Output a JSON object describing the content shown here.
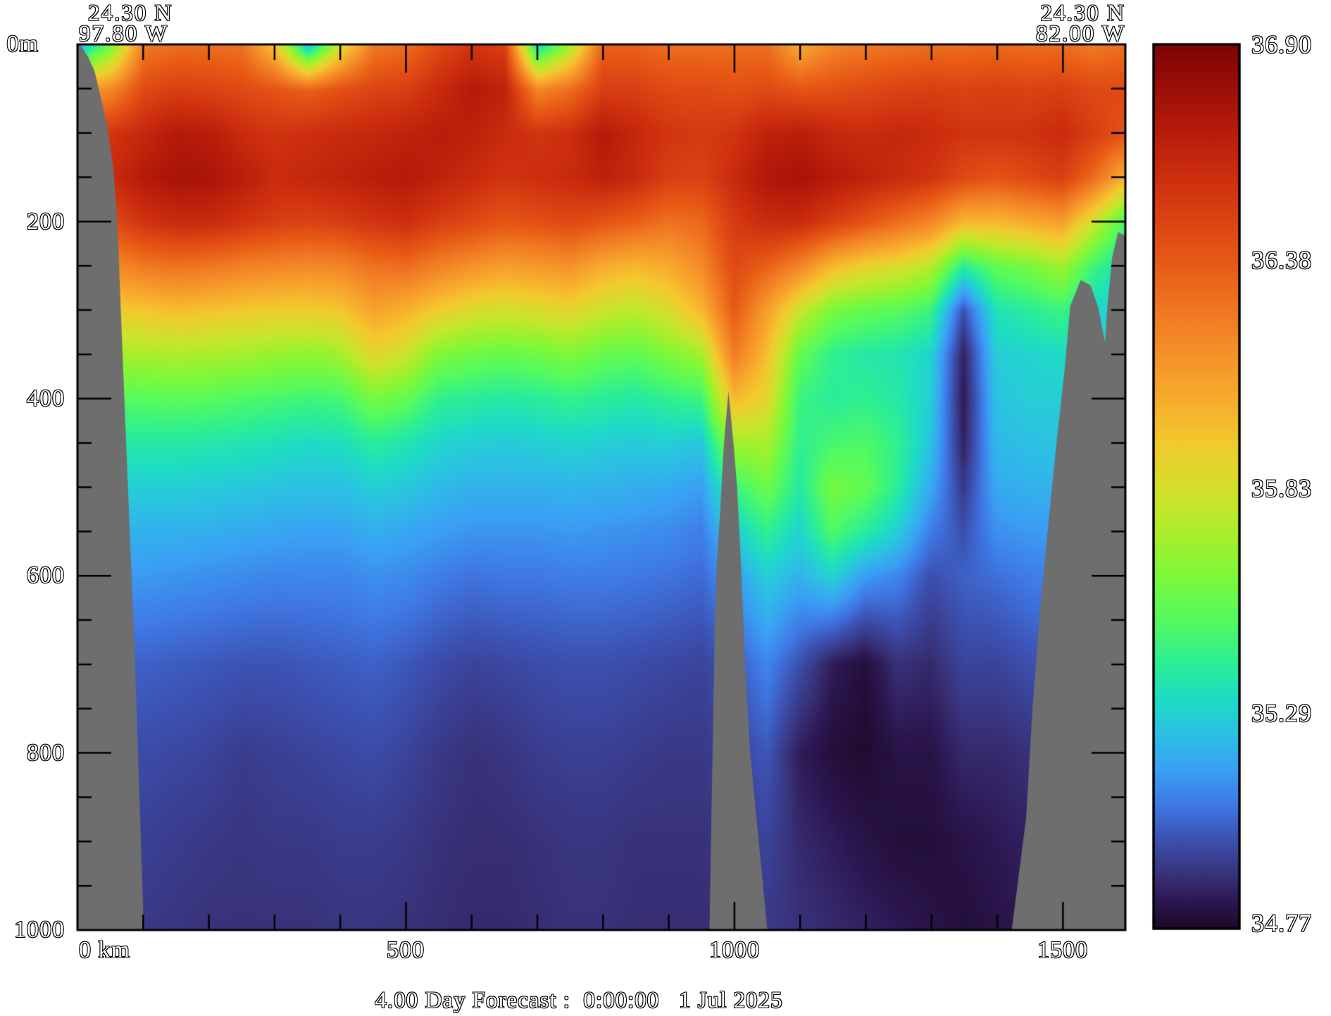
{
  "header": {
    "left": {
      "lat": "24.30 N",
      "lon": "97.80 W"
    },
    "right": {
      "lat": "24.30 N",
      "lon": "82.00 W"
    }
  },
  "caption": "4.00 Day Forecast :  0:00:00   1 Jul 2025",
  "axes": {
    "y_surface_label": "0m",
    "y_tick_labels": [
      "200",
      "400",
      "600",
      "800",
      "1000"
    ],
    "x_tick_labels": [
      "0 km",
      "500",
      "1000",
      "1500"
    ]
  },
  "colorbar": {
    "min": 34.77,
    "max": 36.9,
    "labels": [
      "36.90",
      "36.38",
      "35.83",
      "35.29",
      "34.77"
    ]
  },
  "chart_data": {
    "type": "heatmap",
    "title": "4.00 Day Forecast :  0:00:00   1 Jul 2025",
    "value_name": "salinity",
    "value_range": [
      34.77,
      36.9
    ],
    "x_unit": "km",
    "x_range_km": [
      0,
      1595
    ],
    "depth_range_m": [
      0,
      1000
    ],
    "x_major_ticks_km": [
      0,
      500,
      1000,
      1500
    ],
    "x_minor_step_km": 100,
    "y_major_ticks_m": [
      0,
      200,
      400,
      600,
      800,
      1000
    ],
    "y_minor_step_m": 50,
    "section_endpoints": {
      "west": "24.30 N 97.80 W",
      "east": "24.30 N 82.00 W"
    },
    "x_km": [
      0,
      50,
      100,
      150,
      200,
      250,
      300,
      350,
      400,
      450,
      500,
      550,
      600,
      650,
      700,
      750,
      800,
      850,
      900,
      950,
      1000,
      1050,
      1100,
      1150,
      1200,
      1250,
      1300,
      1350,
      1400,
      1450,
      1500,
      1550,
      1600
    ],
    "depths_m": [
      0,
      50,
      100,
      150,
      200,
      250,
      300,
      350,
      400,
      450,
      500,
      550,
      600,
      700,
      800,
      900,
      1000
    ],
    "salinity_columns": [
      [
        35.2,
        36.1,
        36.45,
        36.55,
        36.4,
        36.15,
        35.9,
        35.7,
        35.5,
        35.38,
        35.28,
        35.2,
        35.14,
        35.02,
        34.97,
        34.94,
        34.92
      ],
      [
        35.6,
        36.2,
        36.55,
        36.6,
        36.45,
        36.18,
        35.92,
        35.7,
        35.52,
        35.38,
        35.28,
        35.2,
        35.14,
        35.02,
        34.97,
        34.94,
        34.92
      ],
      [
        36.25,
        36.45,
        36.62,
        36.7,
        36.55,
        36.25,
        35.95,
        35.72,
        35.52,
        35.38,
        35.28,
        35.2,
        35.14,
        35.02,
        34.97,
        34.94,
        34.92
      ],
      [
        36.3,
        36.5,
        36.7,
        36.75,
        36.6,
        36.28,
        35.98,
        35.73,
        35.53,
        35.38,
        35.28,
        35.2,
        35.13,
        35.01,
        34.96,
        34.93,
        34.91
      ],
      [
        36.3,
        36.48,
        36.68,
        36.74,
        36.6,
        36.26,
        35.96,
        35.72,
        35.52,
        35.37,
        35.27,
        35.19,
        35.12,
        35.0,
        34.95,
        34.92,
        34.9
      ],
      [
        36.28,
        36.45,
        36.6,
        36.68,
        36.55,
        36.22,
        35.94,
        35.7,
        35.5,
        35.36,
        35.26,
        35.18,
        35.11,
        34.99,
        34.93,
        34.91,
        34.9
      ],
      [
        35.95,
        36.4,
        36.55,
        36.6,
        36.5,
        36.2,
        35.92,
        35.68,
        35.48,
        35.34,
        35.25,
        35.17,
        35.1,
        34.99,
        34.94,
        34.92,
        34.9
      ],
      [
        35.22,
        36.35,
        36.58,
        36.62,
        36.48,
        36.18,
        35.92,
        35.66,
        35.46,
        35.32,
        35.24,
        35.16,
        35.1,
        35.0,
        34.95,
        34.92,
        34.9
      ],
      [
        35.85,
        36.42,
        36.6,
        36.65,
        36.5,
        36.2,
        35.95,
        35.7,
        35.48,
        35.33,
        35.24,
        35.16,
        35.1,
        35.01,
        34.96,
        34.93,
        34.91
      ],
      [
        36.25,
        36.48,
        36.62,
        36.68,
        36.55,
        36.28,
        36.08,
        35.88,
        35.6,
        35.4,
        35.28,
        35.19,
        35.12,
        35.02,
        34.97,
        34.93,
        34.91
      ],
      [
        36.3,
        36.5,
        36.65,
        36.7,
        36.58,
        36.3,
        36.02,
        35.8,
        35.55,
        35.36,
        35.26,
        35.17,
        35.11,
        35.0,
        34.95,
        34.92,
        34.9
      ],
      [
        36.45,
        36.6,
        36.68,
        36.65,
        36.5,
        36.22,
        35.92,
        35.62,
        35.42,
        35.3,
        35.22,
        35.15,
        35.08,
        34.97,
        34.92,
        34.9,
        34.89
      ],
      [
        36.55,
        36.7,
        36.66,
        36.6,
        36.45,
        36.15,
        35.85,
        35.58,
        35.4,
        35.28,
        35.2,
        35.13,
        35.06,
        34.95,
        34.9,
        34.89,
        34.88
      ],
      [
        36.5,
        36.65,
        36.6,
        36.55,
        36.4,
        36.1,
        35.82,
        35.56,
        35.38,
        35.27,
        35.2,
        35.13,
        35.07,
        34.96,
        34.91,
        34.89,
        34.88
      ],
      [
        35.3,
        36.2,
        36.55,
        36.58,
        36.42,
        36.12,
        35.85,
        35.58,
        35.4,
        35.28,
        35.2,
        35.13,
        35.07,
        34.97,
        34.93,
        34.9,
        34.89
      ],
      [
        35.7,
        36.3,
        36.58,
        36.6,
        36.45,
        36.15,
        35.88,
        35.62,
        35.43,
        35.3,
        35.21,
        35.14,
        35.08,
        34.98,
        34.94,
        34.91,
        34.9
      ],
      [
        36.35,
        36.5,
        36.7,
        36.66,
        36.4,
        36.05,
        35.8,
        35.56,
        35.4,
        35.28,
        35.2,
        35.13,
        35.08,
        34.98,
        34.94,
        34.91,
        34.9
      ],
      [
        36.35,
        36.5,
        36.62,
        36.6,
        36.35,
        36.0,
        35.76,
        35.54,
        35.38,
        35.27,
        35.19,
        35.12,
        35.07,
        34.97,
        34.93,
        34.9,
        34.89
      ],
      [
        36.3,
        36.45,
        36.55,
        36.5,
        36.28,
        36.05,
        35.85,
        35.62,
        35.42,
        35.28,
        35.18,
        35.11,
        35.06,
        34.96,
        34.92,
        34.9,
        34.89
      ],
      [
        36.3,
        36.45,
        36.52,
        36.48,
        36.32,
        36.18,
        36.0,
        35.7,
        35.45,
        35.26,
        35.15,
        35.08,
        35.04,
        34.95,
        34.92,
        34.9,
        34.89
      ],
      [
        36.3,
        36.42,
        36.55,
        36.6,
        36.52,
        36.45,
        36.38,
        36.25,
        36.0,
        35.7,
        35.45,
        35.28,
        35.15,
        35.0,
        34.95,
        34.92,
        34.9
      ],
      [
        36.3,
        36.45,
        36.65,
        36.72,
        36.6,
        36.35,
        36.1,
        35.98,
        35.88,
        35.72,
        35.58,
        35.42,
        35.28,
        35.1,
        35.0,
        34.95,
        34.92
      ],
      [
        36.05,
        36.4,
        36.68,
        36.75,
        36.6,
        36.2,
        35.8,
        35.55,
        35.45,
        35.42,
        35.38,
        35.3,
        35.2,
        34.98,
        34.85,
        34.88,
        34.9
      ],
      [
        36.2,
        36.42,
        36.62,
        36.7,
        36.5,
        36.0,
        35.6,
        35.42,
        35.4,
        35.48,
        35.6,
        35.5,
        35.3,
        34.85,
        34.8,
        34.85,
        34.88
      ],
      [
        36.25,
        36.45,
        36.6,
        36.65,
        36.4,
        35.9,
        35.55,
        35.38,
        35.42,
        35.5,
        35.55,
        35.4,
        35.15,
        34.8,
        34.78,
        34.82,
        34.86
      ],
      [
        36.28,
        36.48,
        36.62,
        36.6,
        36.3,
        35.85,
        35.52,
        35.36,
        35.38,
        35.42,
        35.4,
        35.28,
        35.1,
        34.9,
        34.82,
        34.8,
        34.84
      ],
      [
        36.3,
        36.5,
        36.6,
        36.55,
        36.2,
        35.75,
        35.45,
        35.3,
        35.28,
        35.25,
        35.18,
        35.08,
        34.98,
        34.88,
        34.82,
        34.8,
        34.82
      ],
      [
        36.3,
        36.48,
        36.55,
        36.45,
        36.0,
        35.4,
        34.98,
        34.86,
        34.84,
        34.86,
        34.92,
        34.98,
        35.02,
        34.95,
        34.88,
        34.82,
        34.8
      ],
      [
        36.32,
        36.5,
        36.55,
        36.4,
        36.0,
        35.55,
        35.35,
        35.28,
        35.25,
        35.22,
        35.18,
        35.12,
        35.05,
        34.95,
        34.88,
        34.84,
        34.82
      ],
      [
        36.3,
        36.48,
        36.56,
        36.45,
        36.05,
        35.6,
        35.4,
        35.3,
        35.28,
        35.24,
        35.2,
        35.14,
        35.08,
        34.98,
        34.9,
        34.86,
        34.84
      ],
      [
        36.3,
        36.5,
        36.6,
        36.5,
        36.1,
        35.7,
        35.45,
        35.32,
        35.28,
        35.25,
        35.2,
        35.15,
        35.1,
        35.0,
        34.92,
        34.88,
        34.86
      ],
      [
        36.25,
        36.45,
        36.5,
        36.3,
        35.8,
        35.45,
        35.3,
        35.28,
        35.26,
        35.24,
        35.2,
        35.16,
        35.12,
        35.02,
        34.94,
        34.9,
        34.88
      ],
      [
        36.3,
        36.45,
        36.4,
        36.0,
        35.45,
        35.32,
        35.28,
        35.26,
        35.24,
        35.22,
        35.2,
        35.16,
        35.12,
        35.04,
        34.96,
        34.92,
        34.9
      ]
    ],
    "colormap_stops": [
      [
        0.0,
        "#1c0a28"
      ],
      [
        0.03,
        "#2c1650"
      ],
      [
        0.06,
        "#383178"
      ],
      [
        0.1,
        "#3c50b0"
      ],
      [
        0.14,
        "#3f78e4"
      ],
      [
        0.18,
        "#3aa0f4"
      ],
      [
        0.22,
        "#2cc0e4"
      ],
      [
        0.26,
        "#1edcc4"
      ],
      [
        0.3,
        "#2cee96"
      ],
      [
        0.35,
        "#55fa5e"
      ],
      [
        0.4,
        "#7ef83a"
      ],
      [
        0.44,
        "#a4ef2e"
      ],
      [
        0.48,
        "#c8e62c"
      ],
      [
        0.55,
        "#f3c92e"
      ],
      [
        0.6,
        "#f7ab2d"
      ],
      [
        0.65,
        "#f59129"
      ],
      [
        0.7,
        "#f07722"
      ],
      [
        0.75,
        "#e85c16"
      ],
      [
        0.8,
        "#dc4413"
      ],
      [
        0.85,
        "#cc2e0e"
      ],
      [
        0.9,
        "#b81c0a"
      ],
      [
        0.95,
        "#9c0f08"
      ],
      [
        1.0,
        "#7c0404"
      ]
    ],
    "land_color": "#6e6e6e",
    "land_polygons_km_m": {
      "left_shelf": [
        [
          4,
          0
        ],
        [
          16,
          14
        ],
        [
          26,
          30
        ],
        [
          34,
          55
        ],
        [
          46,
          95
        ],
        [
          55,
          142
        ],
        [
          61,
          205
        ],
        [
          66,
          300
        ],
        [
          72,
          412
        ],
        [
          79,
          540
        ],
        [
          87,
          683
        ],
        [
          94,
          842
        ],
        [
          101,
          1000
        ],
        [
          0,
          1000
        ],
        [
          0,
          0
        ]
      ],
      "mid_ridge": [
        [
          991,
          391
        ],
        [
          984,
          450
        ],
        [
          978,
          530
        ],
        [
          973,
          586
        ],
        [
          970,
          660
        ],
        [
          968,
          745
        ],
        [
          965,
          870
        ],
        [
          962,
          1000
        ],
        [
          1050,
          1000
        ],
        [
          1024,
          800
        ],
        [
          1016,
          700
        ],
        [
          1010,
          586
        ],
        [
          1004,
          500
        ],
        [
          999,
          455
        ]
      ],
      "right_shelf": [
        [
          1595,
          216
        ],
        [
          1584,
          212
        ],
        [
          1575,
          240
        ],
        [
          1568,
          292
        ],
        [
          1564,
          337
        ],
        [
          1554,
          298
        ],
        [
          1542,
          272
        ],
        [
          1527,
          266
        ],
        [
          1511,
          296
        ],
        [
          1503,
          364
        ],
        [
          1490,
          451
        ],
        [
          1477,
          547
        ],
        [
          1465,
          642
        ],
        [
          1454,
          745
        ],
        [
          1444,
          873
        ],
        [
          1422,
          1000
        ],
        [
          1595,
          1000
        ]
      ]
    },
    "legend_position": "right",
    "grid": false
  }
}
